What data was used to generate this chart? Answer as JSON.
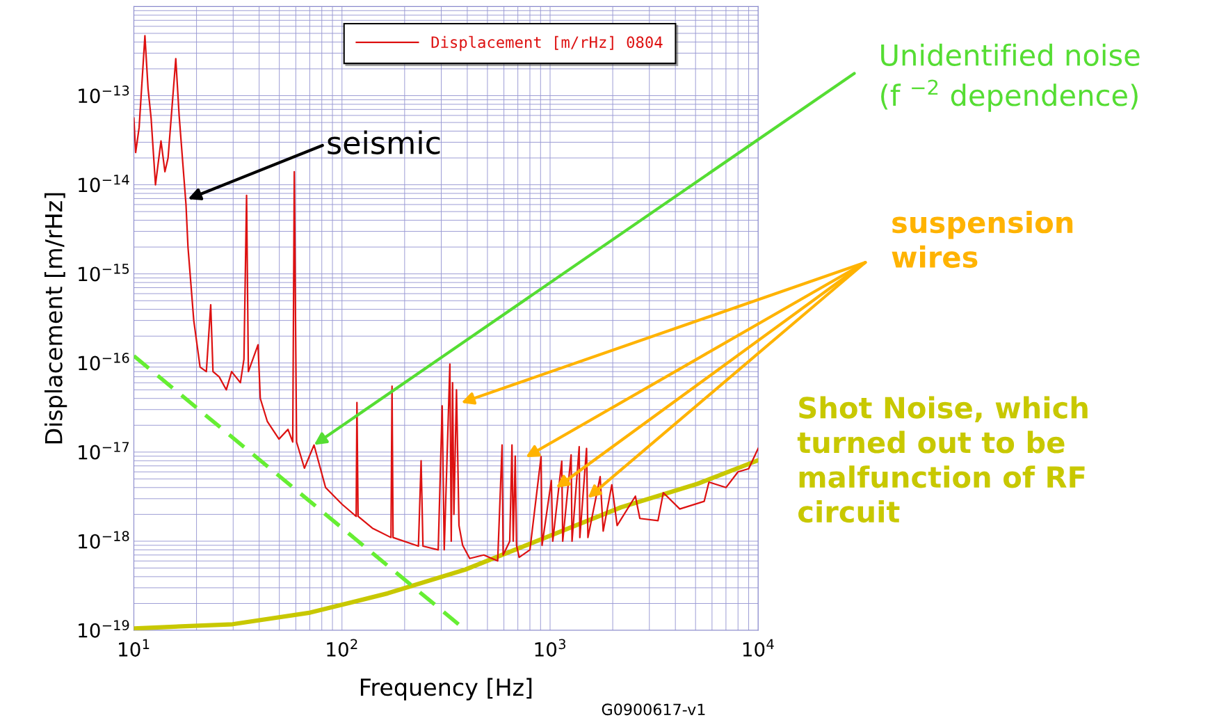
{
  "chart_data": {
    "type": "line",
    "xlabel": "Frequency [Hz]",
    "ylabel": "Displacement [m/rHz]",
    "log": "xy",
    "grid": true,
    "legend": "top right",
    "xlim": [
      10,
      10000
    ],
    "ylim": [
      1e-19,
      1e-12
    ],
    "xticks": [
      {
        "value": 10,
        "label": "10$^{1}$"
      },
      {
        "value": 100,
        "label": "10$^{2}$"
      },
      {
        "value": 1000,
        "label": "10$^{3}$"
      },
      {
        "value": 10000,
        "label": "10$^{4}$"
      },
      {
        "value": 20,
        "label": null
      },
      {
        "value": 30,
        "label": null
      },
      {
        "value": 40,
        "label": null
      },
      {
        "value": 50,
        "label": null
      },
      {
        "value": 60,
        "label": null
      },
      {
        "value": 70,
        "label": null
      },
      {
        "value": 80,
        "label": null
      },
      {
        "value": 90,
        "label": null
      },
      {
        "value": 200,
        "label": null
      },
      {
        "value": 300,
        "label": null
      },
      {
        "value": 400,
        "label": null
      },
      {
        "value": 500,
        "label": null
      },
      {
        "value": 600,
        "label": null
      },
      {
        "value": 700,
        "label": null
      },
      {
        "value": 800,
        "label": null
      },
      {
        "value": 900,
        "label": null
      },
      {
        "value": 2000,
        "label": null
      },
      {
        "value": 3000,
        "label": null
      },
      {
        "value": 4000,
        "label": null
      },
      {
        "value": 5000,
        "label": null
      },
      {
        "value": 6000,
        "label": null
      },
      {
        "value": 7000,
        "label": null
      },
      {
        "value": 8000,
        "label": null
      },
      {
        "value": 9000,
        "label": null
      }
    ],
    "yticks": [
      {
        "value": 1e-19,
        "label": "10$^{−19}$"
      },
      {
        "value": 1e-18,
        "label": "10$^{−18}$"
      },
      {
        "value": 1e-17,
        "label": "10$^{−17}$"
      },
      {
        "value": 1e-16,
        "label": "10$^{−16}$"
      },
      {
        "value": 1e-15,
        "label": "10$^{−15}$"
      },
      {
        "value": 1e-14,
        "label": "10$^{−14}$"
      },
      {
        "value": 1e-13,
        "label": "10$^{−13}$"
      },
      {
        "value": 1e-12,
        "label": null
      },
      {
        "value": 2e-19,
        "label": null
      },
      {
        "value": 3e-19,
        "label": null
      },
      {
        "value": 4e-19,
        "label": null
      },
      {
        "value": 5e-19,
        "label": null
      },
      {
        "value": 6e-19,
        "label": null
      },
      {
        "value": 7e-19,
        "label": null
      },
      {
        "value": 8e-19,
        "label": null
      },
      {
        "value": 9e-19,
        "label": null
      },
      {
        "value": 2e-18,
        "label": null
      },
      {
        "value": 3e-18,
        "label": null
      },
      {
        "value": 4e-18,
        "label": null
      },
      {
        "value": 5e-18,
        "label": null
      },
      {
        "value": 6e-18,
        "label": null
      },
      {
        "value": 7e-18,
        "label": null
      },
      {
        "value": 8e-18,
        "label": null
      },
      {
        "value": 9e-18,
        "label": null
      },
      {
        "value": 2e-17,
        "label": null
      },
      {
        "value": 3e-17,
        "label": null
      },
      {
        "value": 4e-17,
        "label": null
      },
      {
        "value": 5e-17,
        "label": null
      },
      {
        "value": 6e-17,
        "label": null
      },
      {
        "value": 7e-17,
        "label": null
      },
      {
        "value": 8e-17,
        "label": null
      },
      {
        "value": 9e-17,
        "label": null
      },
      {
        "value": 2e-16,
        "label": null
      },
      {
        "value": 3e-16,
        "label": null
      },
      {
        "value": 4e-16,
        "label": null
      },
      {
        "value": 5e-16,
        "label": null
      },
      {
        "value": 6e-16,
        "label": null
      },
      {
        "value": 7e-16,
        "label": null
      },
      {
        "value": 8e-16,
        "label": null
      },
      {
        "value": 9e-16,
        "label": null
      },
      {
        "value": 2e-15,
        "label": null
      },
      {
        "value": 3e-15,
        "label": null
      },
      {
        "value": 4e-15,
        "label": null
      },
      {
        "value": 5e-15,
        "label": null
      },
      {
        "value": 6e-15,
        "label": null
      },
      {
        "value": 7e-15,
        "label": null
      },
      {
        "value": 8e-15,
        "label": null
      },
      {
        "value": 9e-15,
        "label": null
      },
      {
        "value": 2e-14,
        "label": null
      },
      {
        "value": 3e-14,
        "label": null
      },
      {
        "value": 4e-14,
        "label": null
      },
      {
        "value": 5e-14,
        "label": null
      },
      {
        "value": 6e-14,
        "label": null
      },
      {
        "value": 7e-14,
        "label": null
      },
      {
        "value": 8e-14,
        "label": null
      },
      {
        "value": 9e-14,
        "label": null
      },
      {
        "value": 2e-13,
        "label": null
      },
      {
        "value": 3e-13,
        "label": null
      },
      {
        "value": 4e-13,
        "label": null
      },
      {
        "value": 5e-13,
        "label": null
      },
      {
        "value": 6e-13,
        "label": null
      },
      {
        "value": 7e-13,
        "label": null
      },
      {
        "value": 8e-13,
        "label": null
      },
      {
        "value": 9e-13,
        "label": null
      }
    ],
    "series": [
      {
        "name": "Displacement [m/rHz] 0804",
        "color": "#dd1111",
        "line_style": "solid",
        "x": [
          10,
          10.2,
          10.6,
          11.3,
          11.7,
          12.1,
          12.7,
          13.5,
          14.1,
          14.6,
          15.9,
          16.5,
          17.8,
          18.2,
          19.4,
          20.8,
          22.3,
          23.4,
          24.0,
          25.7,
          27.8,
          29.5,
          32.5,
          33.8,
          34.8,
          35.5,
          39.5,
          40.5,
          43.8,
          49.8,
          55,
          58,
          59,
          60.5,
          66,
          73.4,
          83.4,
          100,
          117,
          118,
          119.5,
          140,
          172,
          174,
          176,
          233,
          240,
          245,
          290,
          303,
          310,
          330,
          335,
          340,
          345,
          355,
          365,
          380,
          411,
          480,
          560,
          588,
          595,
          640,
          656,
          665,
          680,
          690,
          710,
          800,
          905,
          915,
          1014,
          1030,
          1138,
          1150,
          1262,
          1275,
          1380,
          1390,
          1497,
          1520,
          1740,
          1800,
          1980,
          2100,
          2570,
          2700,
          3300,
          3500,
          4200,
          5500,
          5800,
          7000,
          8000,
          9000,
          10000
        ],
        "values": [
          5.6e-14,
          2.3e-14,
          4.4e-14,
          4.7e-13,
          1.2e-13,
          5.6e-14,
          1e-14,
          3.1e-14,
          1.4e-14,
          2e-14,
          2.6e-13,
          6e-14,
          6e-15,
          2e-15,
          3e-16,
          9e-17,
          8e-17,
          4.5e-16,
          8e-17,
          7e-17,
          5e-17,
          8e-17,
          6e-17,
          1.1e-16,
          7.6e-15,
          8e-17,
          1.6e-16,
          4e-17,
          2.2e-17,
          1.4e-17,
          1.8e-17,
          1.3e-17,
          1.4e-14,
          1.3e-17,
          6.6e-18,
          1.2e-17,
          4e-18,
          2.6e-18,
          1.9e-18,
          3.6e-17,
          1.9e-18,
          1.4e-18,
          1.1e-18,
          5.5e-17,
          1.1e-18,
          8.8e-19,
          8e-18,
          8.8e-19,
          8e-19,
          3.3e-17,
          8e-19,
          9.7e-17,
          1e-18,
          6e-17,
          2e-18,
          5e-17,
          1.5e-18,
          9e-19,
          6.4e-19,
          7e-19,
          6e-19,
          1.2e-17,
          7e-19,
          1e-18,
          1.2e-17,
          1e-18,
          9e-18,
          9e-19,
          6.6e-19,
          8e-19,
          8.9e-18,
          9e-19,
          4.8e-18,
          1e-18,
          7.9e-18,
          1e-18,
          9.3e-18,
          1e-18,
          1.15e-17,
          1.1e-18,
          1.1e-17,
          1.1e-18,
          5.3e-18,
          1.3e-18,
          4.3e-18,
          1.5e-18,
          3.2e-18,
          1.8e-18,
          1.7e-18,
          3.5e-18,
          2.3e-18,
          2.8e-18,
          4.6e-18,
          4e-18,
          6e-18,
          6.5e-18,
          1.1e-17
        ]
      },
      {
        "color": "#c8c800",
        "line_style": "solid",
        "x": [
          10,
          29.8,
          70.3,
          166,
          391,
          925,
          2190,
          5100,
          10000
        ],
        "values": [
          1.05e-19,
          1.17e-19,
          1.58e-19,
          2.6e-19,
          4.8e-19,
          1.07e-18,
          2.4e-18,
          4.4e-18,
          8.1e-18
        ]
      },
      {
        "color": "#66ee33",
        "line_style": "dashed",
        "x": [
          10,
          394
        ],
        "values": [
          1.2e-16,
          1e-19
        ]
      }
    ],
    "annotations": [
      {
        "text": "seismic",
        "x": 18.2,
        "y": 6.9e-15
      },
      {
        "text": "Unidentified noise\n(f $^{−2}$ dependence)",
        "x": 73.4,
        "y": 1.2e-17
      },
      "suspension\nwires",
      "Shot Noise, which\nturned out to be\nmalfunction of RF\ncircuit",
      "G0900617-v1"
    ]
  }
}
